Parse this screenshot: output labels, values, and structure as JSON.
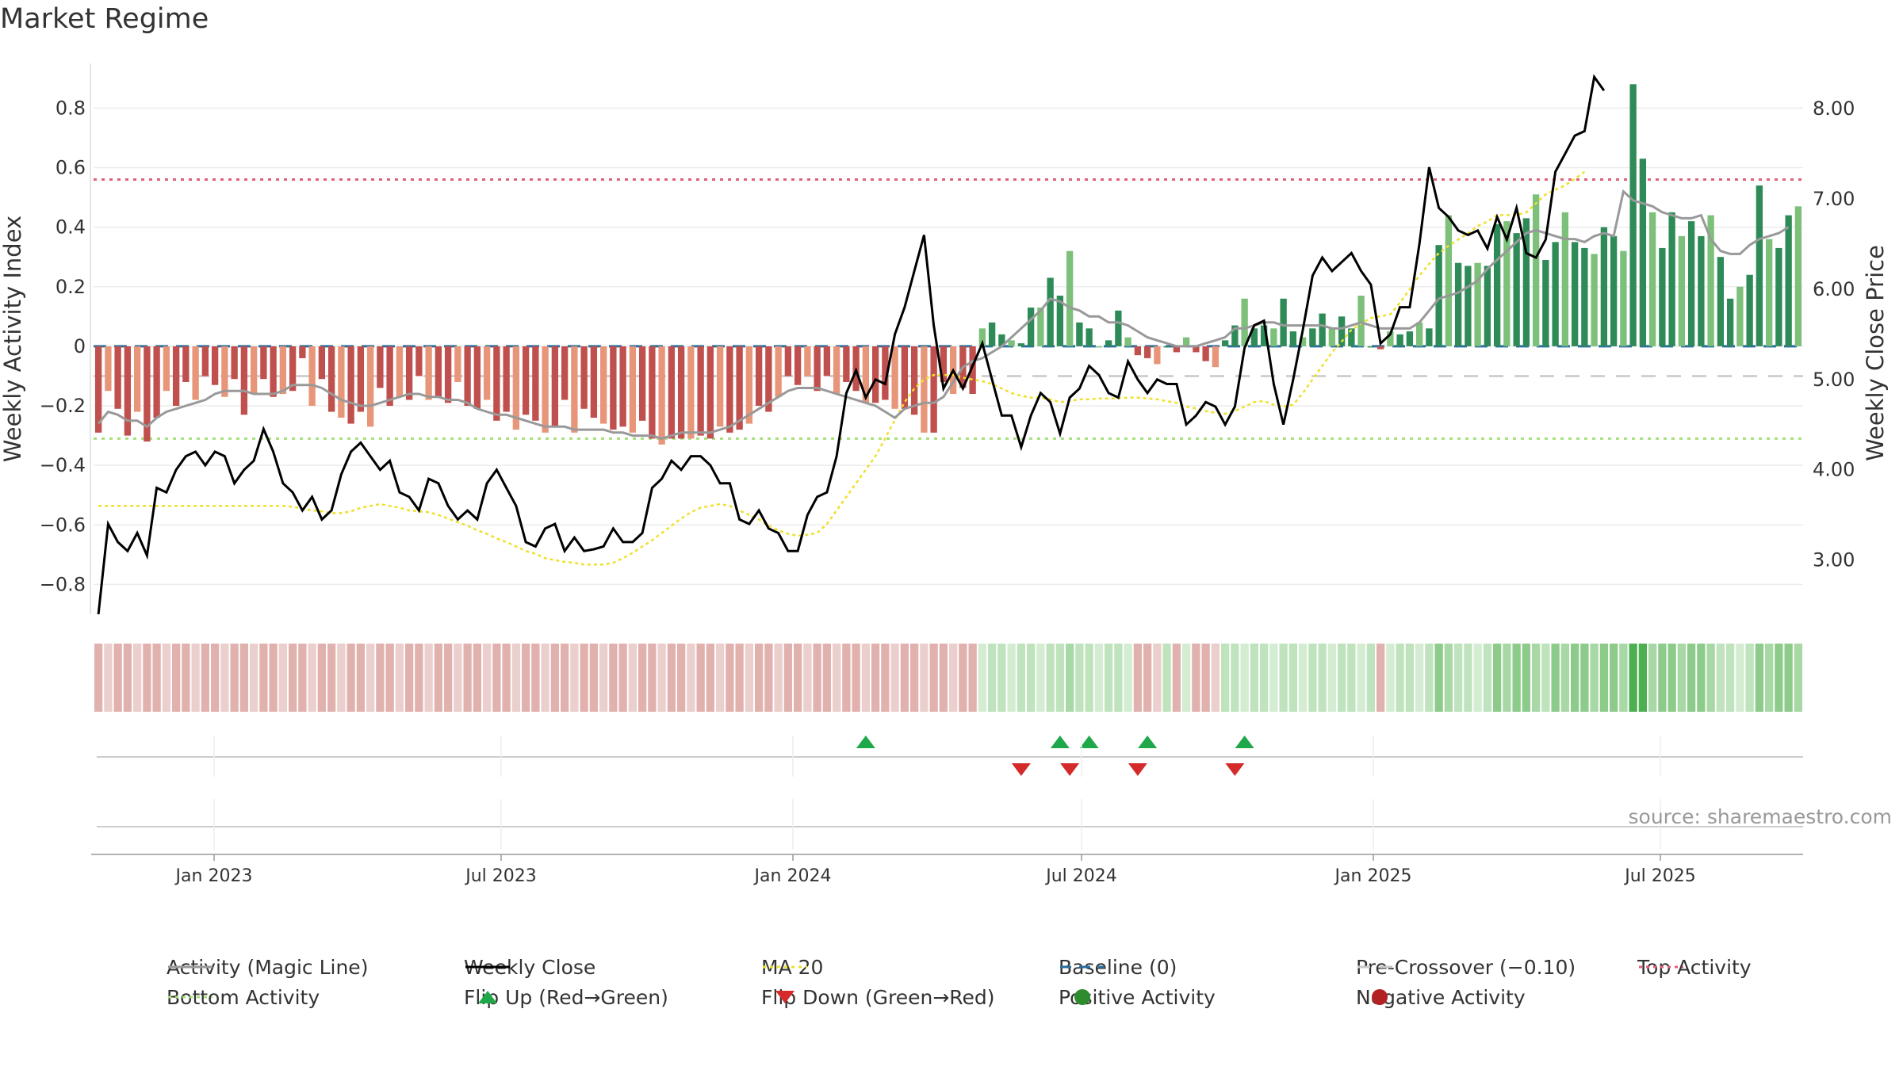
{
  "title": "Market Regime",
  "source": "source: sharemaestro.com",
  "chart_data": {
    "type": "bar",
    "title": "Market Regime",
    "ylabel_left": "Weekly Activity Index",
    "ylabel_right": "Weekly Close Price",
    "ylim_left": [
      -0.9,
      0.95
    ],
    "ylim_right": [
      2.4,
      8.5
    ],
    "yticks_left": [
      "0.8",
      "0.6",
      "0.4",
      "0.2",
      "0",
      "−0.2",
      "−0.4",
      "−0.6",
      "−0.8"
    ],
    "yticks_left_values": [
      0.8,
      0.6,
      0.4,
      0.2,
      0,
      -0.2,
      -0.4,
      -0.6,
      -0.8
    ],
    "yticks_right": [
      "8.00",
      "7.00",
      "6.00",
      "5.00",
      "4.00",
      "3.00"
    ],
    "yticks_right_values": [
      8,
      7,
      6,
      5,
      4,
      3
    ],
    "x_start": "2022-10-17",
    "x_end": "2025-09-29",
    "xticks": [
      {
        "label": "Jan 2023",
        "date": "2023-01-01"
      },
      {
        "label": "Jul 2023",
        "date": "2023-07-01"
      },
      {
        "label": "Jan 2024",
        "date": "2024-01-01"
      },
      {
        "label": "Jul 2024",
        "date": "2024-07-01"
      },
      {
        "label": "Jan 2025",
        "date": "2025-01-01"
      },
      {
        "label": "Jul 2025",
        "date": "2025-07-01"
      }
    ],
    "reference_lines": {
      "top_activity": 0.56,
      "bottom_activity": -0.31,
      "baseline": 0,
      "pre_crossover": -0.1
    },
    "activity": [
      -0.29,
      -0.15,
      -0.21,
      -0.3,
      -0.22,
      -0.32,
      -0.24,
      -0.15,
      -0.2,
      -0.12,
      -0.18,
      -0.1,
      -0.13,
      -0.17,
      -0.11,
      -0.23,
      -0.16,
      -0.11,
      -0.17,
      -0.16,
      -0.15,
      -0.04,
      -0.2,
      -0.11,
      -0.22,
      -0.24,
      -0.26,
      -0.22,
      -0.27,
      -0.14,
      -0.2,
      -0.17,
      -0.18,
      -0.1,
      -0.18,
      -0.17,
      -0.19,
      -0.12,
      -0.2,
      -0.21,
      -0.18,
      -0.25,
      -0.22,
      -0.28,
      -0.23,
      -0.25,
      -0.29,
      -0.27,
      -0.18,
      -0.29,
      -0.21,
      -0.24,
      -0.26,
      -0.28,
      -0.27,
      -0.29,
      -0.25,
      -0.31,
      -0.33,
      -0.31,
      -0.31,
      -0.31,
      -0.3,
      -0.31,
      -0.27,
      -0.29,
      -0.28,
      -0.26,
      -0.2,
      -0.22,
      -0.17,
      -0.1,
      -0.13,
      -0.1,
      -0.15,
      -0.1,
      -0.16,
      -0.12,
      -0.15,
      -0.19,
      -0.19,
      -0.18,
      -0.21,
      -0.21,
      -0.23,
      -0.29,
      -0.29,
      -0.12,
      -0.16,
      -0.14,
      -0.16,
      0.06,
      0.08,
      0.04,
      0.02,
      0.01,
      0.13,
      0.13,
      0.23,
      0.17,
      0.32,
      0.08,
      0.06,
      0.0,
      0.02,
      0.12,
      0.03,
      -0.03,
      -0.04,
      -0.06,
      0.0,
      -0.02,
      0.03,
      -0.02,
      -0.05,
      -0.07,
      0.02,
      0.07,
      0.16,
      0.06,
      0.07,
      0.06,
      0.16,
      0.05,
      0.03,
      0.06,
      0.11,
      0.06,
      0.1,
      0.06,
      0.17,
      0.0,
      -0.01,
      0.05,
      0.04,
      0.05,
      0.08,
      0.06,
      0.34,
      0.44,
      0.28,
      0.27,
      0.28,
      0.27,
      0.41,
      0.42,
      0.38,
      0.43,
      0.51,
      0.29,
      0.35,
      0.45,
      0.35,
      0.33,
      0.31,
      0.4,
      0.37,
      0.32,
      0.88,
      0.63,
      0.45,
      0.33,
      0.45,
      0.37,
      0.42,
      0.37,
      0.44,
      0.3,
      0.16,
      0.2,
      0.24,
      0.54,
      0.36,
      0.33,
      0.44,
      0.47
    ],
    "close": [
      2.4,
      3.4,
      3.2,
      3.1,
      3.3,
      3.05,
      3.8,
      3.75,
      4.0,
      4.15,
      4.2,
      4.05,
      4.2,
      4.15,
      3.85,
      4.0,
      4.1,
      4.45,
      4.2,
      3.85,
      3.75,
      3.55,
      3.7,
      3.45,
      3.55,
      3.95,
      4.2,
      4.3,
      4.15,
      4.0,
      4.1,
      3.75,
      3.7,
      3.55,
      3.9,
      3.85,
      3.6,
      3.45,
      3.55,
      3.45,
      3.85,
      4.0,
      3.8,
      3.6,
      3.2,
      3.15,
      3.35,
      3.4,
      3.1,
      3.25,
      3.1,
      3.12,
      3.15,
      3.35,
      3.2,
      3.2,
      3.3,
      3.8,
      3.9,
      4.1,
      4.0,
      4.15,
      4.15,
      4.05,
      3.85,
      3.85,
      3.45,
      3.4,
      3.55,
      3.35,
      3.3,
      3.1,
      3.1,
      3.5,
      3.7,
      3.75,
      4.15,
      4.85,
      5.1,
      4.8,
      5.0,
      4.95,
      5.5,
      5.8,
      6.2,
      6.6,
      5.6,
      4.9,
      5.1,
      4.9,
      5.15,
      5.4,
      5.0,
      4.6,
      4.6,
      4.25,
      4.6,
      4.85,
      4.75,
      4.4,
      4.8,
      4.9,
      5.15,
      5.05,
      4.85,
      4.8,
      5.2,
      5.0,
      4.85,
      5.0,
      4.95,
      4.95,
      4.5,
      4.6,
      4.75,
      4.7,
      4.5,
      4.7,
      5.35,
      5.6,
      5.65,
      4.95,
      4.5,
      5.0,
      5.55,
      6.15,
      6.35,
      6.2,
      6.3,
      6.4,
      6.2,
      6.05,
      5.4,
      5.5,
      5.8,
      5.8,
      6.5,
      7.35,
      6.9,
      6.8,
      6.65,
      6.6,
      6.65,
      6.45,
      6.8,
      6.55,
      6.9,
      6.4,
      6.35,
      6.55,
      7.3,
      7.5,
      7.7,
      7.75,
      8.35,
      8.2
    ],
    "ma20": [
      3.6,
      3.6,
      3.6,
      3.6,
      3.6,
      3.6,
      3.6,
      3.6,
      3.6,
      3.6,
      3.6,
      3.6,
      3.6,
      3.6,
      3.6,
      3.6,
      3.6,
      3.6,
      3.6,
      3.6,
      3.59,
      3.57,
      3.55,
      3.54,
      3.52,
      3.52,
      3.54,
      3.58,
      3.6,
      3.62,
      3.6,
      3.58,
      3.55,
      3.54,
      3.53,
      3.5,
      3.46,
      3.42,
      3.38,
      3.33,
      3.29,
      3.24,
      3.2,
      3.15,
      3.1,
      3.07,
      3.02,
      3.0,
      2.98,
      2.97,
      2.95,
      2.95,
      2.95,
      2.97,
      3.02,
      3.08,
      3.15,
      3.22,
      3.3,
      3.38,
      3.46,
      3.53,
      3.58,
      3.6,
      3.62,
      3.6,
      3.55,
      3.5,
      3.45,
      3.38,
      3.33,
      3.29,
      3.27,
      3.28,
      3.3,
      3.4,
      3.55,
      3.7,
      3.85,
      4.0,
      4.15,
      4.35,
      4.55,
      4.75,
      4.9,
      5.0,
      5.05,
      5.05,
      5.05,
      5.02,
      5.0,
      4.98,
      4.95,
      4.9,
      4.85,
      4.82,
      4.8,
      4.8,
      4.78,
      4.75,
      4.76,
      4.78,
      4.78,
      4.79,
      4.79,
      4.79,
      4.8,
      4.8,
      4.79,
      4.78,
      4.76,
      4.74,
      4.7,
      4.68,
      4.65,
      4.63,
      4.62,
      4.65,
      4.7,
      4.75,
      4.76,
      4.72,
      4.7,
      4.72,
      4.85,
      5.0,
      5.15,
      5.3,
      5.42,
      5.55,
      5.62,
      5.68,
      5.7,
      5.72,
      5.85,
      6.0,
      6.15,
      6.28,
      6.4,
      6.48,
      6.55,
      6.62,
      6.7,
      6.75,
      6.82,
      6.82,
      6.82,
      6.85,
      6.95,
      7.05,
      7.1,
      7.15,
      7.22,
      7.3
    ],
    "magic_line": [
      -0.26,
      -0.22,
      -0.23,
      -0.25,
      -0.25,
      -0.27,
      -0.24,
      -0.22,
      -0.21,
      -0.2,
      -0.19,
      -0.18,
      -0.16,
      -0.15,
      -0.15,
      -0.15,
      -0.16,
      -0.16,
      -0.16,
      -0.15,
      -0.13,
      -0.13,
      -0.13,
      -0.14,
      -0.16,
      -0.18,
      -0.19,
      -0.2,
      -0.2,
      -0.19,
      -0.18,
      -0.17,
      -0.16,
      -0.16,
      -0.17,
      -0.17,
      -0.18,
      -0.18,
      -0.19,
      -0.21,
      -0.22,
      -0.23,
      -0.23,
      -0.24,
      -0.25,
      -0.26,
      -0.27,
      -0.27,
      -0.27,
      -0.28,
      -0.28,
      -0.28,
      -0.28,
      -0.29,
      -0.29,
      -0.3,
      -0.3,
      -0.3,
      -0.31,
      -0.3,
      -0.29,
      -0.29,
      -0.29,
      -0.29,
      -0.28,
      -0.27,
      -0.25,
      -0.23,
      -0.21,
      -0.19,
      -0.17,
      -0.15,
      -0.14,
      -0.14,
      -0.14,
      -0.15,
      -0.16,
      -0.17,
      -0.18,
      -0.19,
      -0.2,
      -0.22,
      -0.24,
      -0.21,
      -0.2,
      -0.19,
      -0.19,
      -0.17,
      -0.12,
      -0.07,
      -0.05,
      -0.04,
      -0.02,
      0.0,
      0.03,
      0.06,
      0.09,
      0.12,
      0.16,
      0.15,
      0.13,
      0.12,
      0.1,
      0.1,
      0.08,
      0.08,
      0.07,
      0.05,
      0.03,
      0.02,
      0.01,
      0.0,
      0.0,
      0.0,
      0.01,
      0.02,
      0.03,
      0.06,
      0.06,
      0.07,
      0.08,
      0.08,
      0.07,
      0.07,
      0.07,
      0.07,
      0.07,
      0.06,
      0.06,
      0.07,
      0.08,
      0.07,
      0.06,
      0.06,
      0.06,
      0.06,
      0.08,
      0.12,
      0.16,
      0.17,
      0.18,
      0.2,
      0.22,
      0.26,
      0.29,
      0.32,
      0.35,
      0.38,
      0.39,
      0.38,
      0.37,
      0.36,
      0.36,
      0.35,
      0.37,
      0.38,
      0.37,
      0.52,
      0.49,
      0.48,
      0.47,
      0.45,
      0.44,
      0.43,
      0.43,
      0.44,
      0.36,
      0.32,
      0.31,
      0.31,
      0.34,
      0.36,
      0.37,
      0.38,
      0.4
    ],
    "flip_up_weeks": [
      79,
      99,
      102,
      108,
      118
    ],
    "flip_down_weeks": [
      95,
      100,
      107,
      117
    ],
    "series": [
      {
        "name": "Activity (Magic Line)",
        "color": "#999999",
        "style": "solid"
      },
      {
        "name": "Weekly Close",
        "color": "#000000",
        "style": "solid"
      },
      {
        "name": "MA 20",
        "color": "#f0e02a",
        "style": "dotted"
      },
      {
        "name": "Baseline (0)",
        "color": "#2a6fa0",
        "style": "dashed"
      },
      {
        "name": "Pre-Crossover (−0.10)",
        "color": "#c8c8c8",
        "style": "dashed"
      },
      {
        "name": "Top Activity",
        "color": "#e0607a",
        "style": "dotted"
      },
      {
        "name": "Bottom Activity",
        "color": "#a6e07a",
        "style": "dotted"
      },
      {
        "name": "Flip Up (Red→Green)",
        "color": "#1fa84a",
        "style": "triangle-up"
      },
      {
        "name": "Flip Down (Green→Red)",
        "color": "#d42a2a",
        "style": "triangle-down"
      },
      {
        "name": "Positive Activity",
        "color": "#2e8b2e",
        "style": "circle"
      },
      {
        "name": "Negative Activity",
        "color": "#b22222",
        "style": "circle"
      }
    ],
    "colors": {
      "neg_strong": "#c0504d",
      "neg_light": "#e8967a",
      "pos_strong": "#2e8b57",
      "pos_light": "#7cc07a"
    },
    "legend_position": "bottom"
  }
}
